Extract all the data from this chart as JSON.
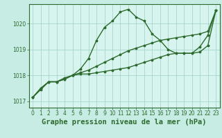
{
  "title": "Graphe pression niveau de la mer (hPa)",
  "background_color": "#c6ece4",
  "plot_background": "#d8f4ee",
  "line_color": "#2d6a2d",
  "grid_color": "#9ecfc6",
  "xlim": [
    -0.5,
    23.5
  ],
  "ylim": [
    1016.75,
    1020.75
  ],
  "yticks": [
    1017,
    1018,
    1019,
    1020
  ],
  "xticks": [
    0,
    1,
    2,
    3,
    4,
    5,
    6,
    7,
    8,
    9,
    10,
    11,
    12,
    13,
    14,
    15,
    16,
    17,
    18,
    19,
    20,
    21,
    22,
    23
  ],
  "line1_x": [
    0,
    1,
    2,
    3,
    4,
    5,
    6,
    7,
    8,
    9,
    10,
    11,
    12,
    13,
    14,
    15,
    16,
    17,
    18,
    19,
    20,
    21,
    22,
    23
  ],
  "line1_y": [
    1017.15,
    1017.5,
    1017.75,
    1017.75,
    1017.85,
    1018.0,
    1018.05,
    1018.05,
    1018.1,
    1018.15,
    1018.2,
    1018.25,
    1018.3,
    1018.4,
    1018.5,
    1018.6,
    1018.7,
    1018.8,
    1018.85,
    1018.85,
    1018.85,
    1018.9,
    1019.15,
    1020.5
  ],
  "line2_x": [
    0,
    1,
    2,
    3,
    4,
    5,
    6,
    7,
    8,
    9,
    10,
    11,
    12,
    13,
    14,
    15,
    16,
    17,
    18,
    19,
    20,
    21,
    22,
    23
  ],
  "line2_y": [
    1017.15,
    1017.5,
    1017.75,
    1017.75,
    1017.85,
    1018.0,
    1018.1,
    1018.2,
    1018.35,
    1018.5,
    1018.65,
    1018.8,
    1018.95,
    1019.05,
    1019.15,
    1019.25,
    1019.35,
    1019.4,
    1019.45,
    1019.5,
    1019.55,
    1019.6,
    1019.7,
    1020.5
  ],
  "line3_x": [
    0,
    1,
    2,
    3,
    4,
    5,
    6,
    7,
    8,
    9,
    10,
    11,
    12,
    13,
    14,
    15,
    16,
    17,
    18,
    19,
    20,
    21,
    22,
    23
  ],
  "line3_y": [
    1017.15,
    1017.45,
    1017.75,
    1017.75,
    1017.9,
    1018.0,
    1018.25,
    1018.65,
    1019.35,
    1019.85,
    1020.1,
    1020.45,
    1020.55,
    1020.25,
    1020.1,
    1019.6,
    1019.35,
    1019.0,
    1018.85,
    1018.85,
    1018.85,
    1019.1,
    1019.55,
    1020.5
  ],
  "title_fontsize": 7.5,
  "tick_fontsize": 5.5,
  "marker_size": 2.5,
  "line_width": 1.0
}
